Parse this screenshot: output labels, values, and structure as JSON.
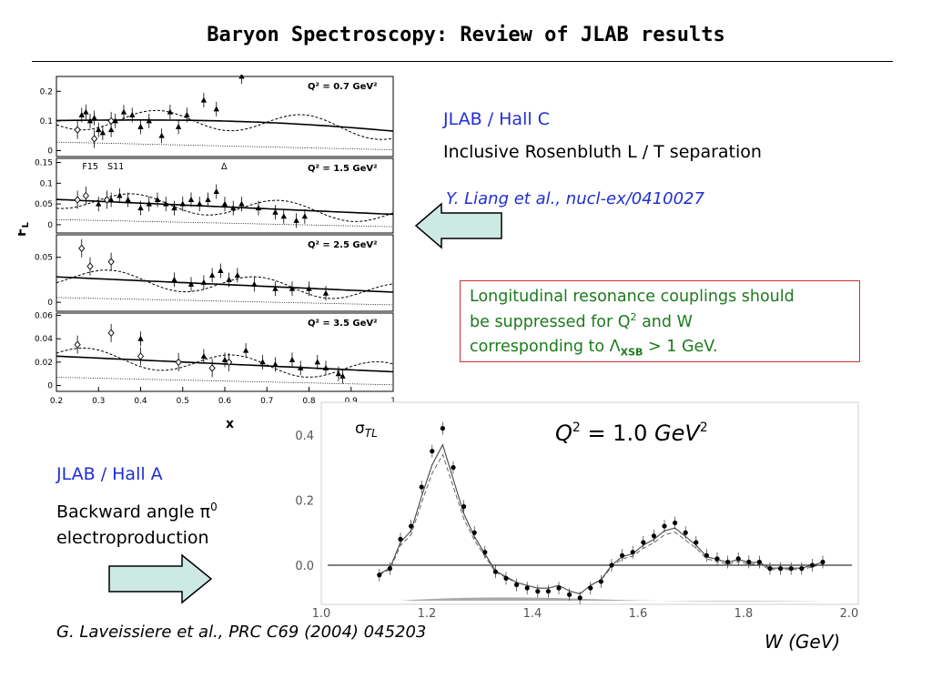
{
  "slide": {
    "title": "Baryon Spectroscopy: Review of JLAB results"
  },
  "hall_c": {
    "label": "JLAB / Hall C",
    "subtitle": "Inclusive Rosenbluth L / T separation",
    "reference": "Y. Liang et al., nucl-ex/0410027"
  },
  "note_box": {
    "line1": "Longitudinal resonance couplings should",
    "line2_pre": "be suppressed for Q",
    "line2_sup": "2",
    "line2_post": " and W",
    "line3_pre": "corresponding to  Λ",
    "line3_sub": "XSB",
    "line3_post": " > 1 GeV."
  },
  "hall_a": {
    "label": "JLAB / Hall A",
    "line1_pre": "Backward angle π",
    "line1_sup": "0",
    "line2": "electroproduction",
    "reference": "G. Laveissiere et al., PRC C69 (2004) 045203"
  },
  "colors": {
    "blue_text": "#1f2fd1",
    "green_text": "#1d7a1d",
    "box_border": "#d03030",
    "arrow_fill": "#cde9e4"
  },
  "chart_data": [
    {
      "type": "scatter",
      "ylabel": "F_L",
      "xlabel": "x",
      "x_ticks": [
        "0.2",
        "0.3",
        "0.4",
        "0.5",
        "0.6",
        "0.7",
        "0.8",
        "0.9",
        "1"
      ],
      "xlim": [
        0.2,
        1.0
      ],
      "resonance_labels": [
        "F15",
        "S11",
        "Δ"
      ],
      "panels": [
        {
          "label": "Q² = 0.7 GeV²",
          "ylim": [
            -0.02,
            0.25
          ],
          "yticks": [
            "0",
            "0.1",
            "0.2"
          ],
          "points": [
            [
              0.26,
              0.12
            ],
            [
              0.27,
              0.13
            ],
            [
              0.28,
              0.1
            ],
            [
              0.29,
              0.11
            ],
            [
              0.3,
              0.07
            ],
            [
              0.31,
              0.06
            ],
            [
              0.33,
              0.07
            ],
            [
              0.34,
              0.1
            ],
            [
              0.36,
              0.13
            ],
            [
              0.38,
              0.12
            ],
            [
              0.4,
              0.08
            ],
            [
              0.42,
              0.1
            ],
            [
              0.45,
              0.05
            ],
            [
              0.47,
              0.13
            ],
            [
              0.49,
              0.08
            ],
            [
              0.51,
              0.12
            ],
            [
              0.55,
              0.17
            ],
            [
              0.58,
              0.14
            ],
            [
              0.64,
              0.25
            ]
          ],
          "open_points": [
            [
              0.25,
              0.07
            ],
            [
              0.29,
              0.04
            ],
            [
              0.33,
              0.1
            ]
          ]
        },
        {
          "label": "Q² = 1.5 GeV²",
          "ylim": [
            -0.02,
            0.16
          ],
          "yticks": [
            "0",
            "0.05",
            "0.1",
            "0.15"
          ],
          "points": [
            [
              0.3,
              0.05
            ],
            [
              0.33,
              0.06
            ],
            [
              0.35,
              0.07
            ],
            [
              0.37,
              0.06
            ],
            [
              0.4,
              0.04
            ],
            [
              0.42,
              0.05
            ],
            [
              0.44,
              0.06
            ],
            [
              0.46,
              0.05
            ],
            [
              0.48,
              0.04
            ],
            [
              0.5,
              0.05
            ],
            [
              0.52,
              0.06
            ],
            [
              0.54,
              0.05
            ],
            [
              0.56,
              0.06
            ],
            [
              0.58,
              0.08
            ],
            [
              0.6,
              0.05
            ],
            [
              0.62,
              0.04
            ],
            [
              0.64,
              0.05
            ],
            [
              0.68,
              0.04
            ],
            [
              0.72,
              0.03
            ],
            [
              0.74,
              0.02
            ],
            [
              0.77,
              0.01
            ],
            [
              0.79,
              0.02
            ]
          ],
          "open_points": [
            [
              0.25,
              0.06
            ],
            [
              0.27,
              0.07
            ],
            [
              0.32,
              0.06
            ]
          ]
        },
        {
          "label": "Q² = 2.5 GeV²",
          "ylim": [
            -0.01,
            0.075
          ],
          "yticks": [
            "0",
            "0.05"
          ],
          "points": [
            [
              0.48,
              0.025
            ],
            [
              0.52,
              0.02
            ],
            [
              0.55,
              0.022
            ],
            [
              0.57,
              0.03
            ],
            [
              0.59,
              0.035
            ],
            [
              0.61,
              0.025
            ],
            [
              0.63,
              0.03
            ],
            [
              0.67,
              0.02
            ],
            [
              0.72,
              0.015
            ],
            [
              0.76,
              0.015
            ],
            [
              0.8,
              0.015
            ],
            [
              0.84,
              0.01
            ]
          ],
          "open_points": [
            [
              0.26,
              0.06
            ],
            [
              0.28,
              0.04
            ],
            [
              0.33,
              0.045
            ]
          ]
        },
        {
          "label": "Q² = 3.5 GeV²",
          "ylim": [
            -0.005,
            0.062
          ],
          "yticks": [
            "0",
            "0.02",
            "0.04",
            "0.06"
          ],
          "points": [
            [
              0.4,
              0.04
            ],
            [
              0.55,
              0.025
            ],
            [
              0.6,
              0.022
            ],
            [
              0.65,
              0.03
            ],
            [
              0.69,
              0.02
            ],
            [
              0.72,
              0.018
            ],
            [
              0.76,
              0.022
            ],
            [
              0.78,
              0.015
            ],
            [
              0.82,
              0.02
            ],
            [
              0.84,
              0.015
            ],
            [
              0.87,
              0.01
            ],
            [
              0.88,
              0.008
            ]
          ],
          "open_points": [
            [
              0.25,
              0.035
            ],
            [
              0.33,
              0.045
            ],
            [
              0.4,
              0.025
            ],
            [
              0.49,
              0.02
            ],
            [
              0.57,
              0.015
            ],
            [
              0.61,
              0.02
            ]
          ]
        }
      ]
    },
    {
      "type": "scatter",
      "title": "Q² = 1.0 GeV²",
      "ylabel": "σ_TL",
      "xlabel": "W (GeV)",
      "xlim": [
        1.0,
        2.0
      ],
      "ylim": [
        -0.12,
        0.5
      ],
      "x_ticks": [
        "1.0",
        "1.2",
        "1.4",
        "1.6",
        "1.8",
        "2.0"
      ],
      "y_ticks": [
        "0.0",
        "0.2",
        "0.4"
      ],
      "points": [
        [
          1.11,
          -0.03
        ],
        [
          1.13,
          -0.01
        ],
        [
          1.15,
          0.08
        ],
        [
          1.17,
          0.12
        ],
        [
          1.19,
          0.24
        ],
        [
          1.21,
          0.35
        ],
        [
          1.23,
          0.42
        ],
        [
          1.25,
          0.3
        ],
        [
          1.27,
          0.18
        ],
        [
          1.29,
          0.1
        ],
        [
          1.31,
          0.04
        ],
        [
          1.33,
          -0.02
        ],
        [
          1.35,
          -0.04
        ],
        [
          1.37,
          -0.06
        ],
        [
          1.39,
          -0.07
        ],
        [
          1.41,
          -0.08
        ],
        [
          1.43,
          -0.08
        ],
        [
          1.45,
          -0.07
        ],
        [
          1.47,
          -0.09
        ],
        [
          1.49,
          -0.1
        ],
        [
          1.51,
          -0.07
        ],
        [
          1.53,
          -0.05
        ],
        [
          1.55,
          0.0
        ],
        [
          1.57,
          0.03
        ],
        [
          1.59,
          0.04
        ],
        [
          1.61,
          0.07
        ],
        [
          1.63,
          0.09
        ],
        [
          1.65,
          0.12
        ],
        [
          1.67,
          0.13
        ],
        [
          1.69,
          0.1
        ],
        [
          1.71,
          0.07
        ],
        [
          1.73,
          0.03
        ],
        [
          1.75,
          0.02
        ],
        [
          1.77,
          0.01
        ],
        [
          1.79,
          0.02
        ],
        [
          1.81,
          0.01
        ],
        [
          1.83,
          0.01
        ],
        [
          1.85,
          -0.01
        ],
        [
          1.87,
          -0.01
        ],
        [
          1.89,
          -0.01
        ],
        [
          1.91,
          -0.01
        ],
        [
          1.93,
          0.0
        ],
        [
          1.95,
          0.01
        ]
      ]
    }
  ]
}
